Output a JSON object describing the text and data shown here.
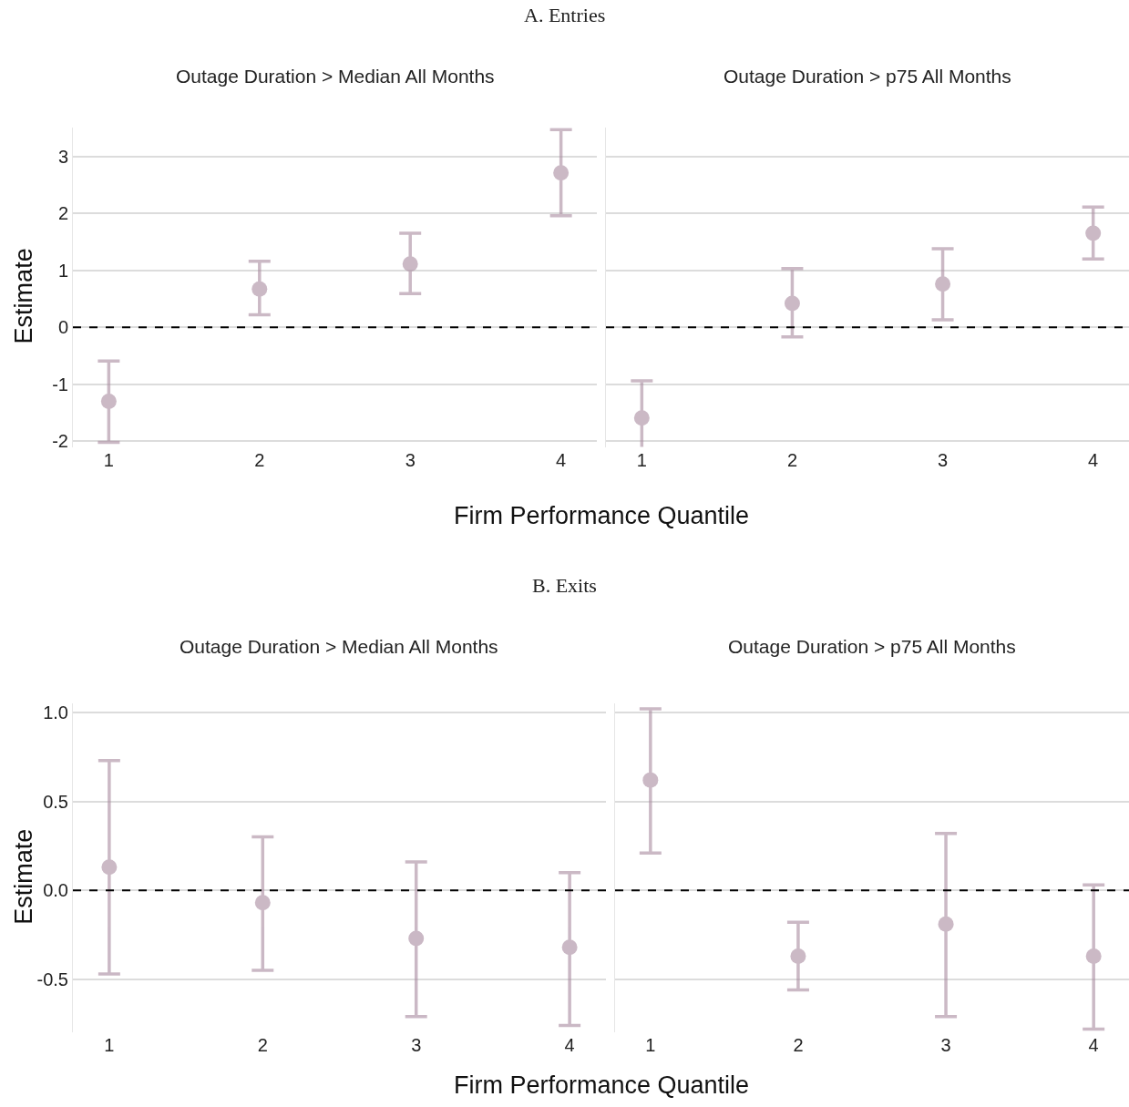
{
  "chart_data": [
    {
      "type": "scatter",
      "title": "A. Entries",
      "subtitle": "Outage Duration > Median All Months",
      "xlabel": "Firm Performance Quantile",
      "ylabel": "Estimate",
      "categories": [
        "1",
        "2",
        "3",
        "4"
      ],
      "series": [
        {
          "color": "#a88a9f",
          "values": [
            -1.3,
            0.67,
            1.11,
            2.71
          ],
          "errors": [
            [
              -2.02,
              -0.59
            ],
            [
              0.22,
              1.16
            ],
            [
              0.59,
              1.65
            ],
            [
              1.96,
              3.47
            ]
          ]
        }
      ],
      "ylim": [
        -2.1,
        3.5
      ],
      "yticks": [
        -2,
        -1,
        0,
        1,
        2,
        3
      ],
      "grid": "y",
      "marker": "circle",
      "ref_lines": [
        {
          "axis": "y",
          "value": 0,
          "color": "#000000",
          "line_style": "dashed"
        }
      ]
    },
    {
      "type": "scatter",
      "subtitle": "Outage Duration > p75 All Months",
      "categories": [
        "1",
        "2",
        "3",
        "4"
      ],
      "series": [
        {
          "color": "#a88a9f",
          "values": [
            -1.59,
            0.42,
            0.76,
            1.65
          ],
          "errors": [
            [
              -2.23,
              -0.94
            ],
            [
              -0.17,
              1.03
            ],
            [
              0.13,
              1.38
            ],
            [
              1.2,
              2.11
            ]
          ]
        }
      ],
      "ylim": [
        -2.1,
        3.5
      ],
      "yticks": [
        -2,
        -1,
        0,
        1,
        2,
        3
      ],
      "grid": "y",
      "marker": "circle",
      "tick_labels": "x",
      "ref_lines": [
        {
          "axis": "y",
          "value": 0,
          "color": "#000000",
          "line_style": "dashed"
        }
      ]
    },
    {
      "type": "scatter",
      "title": "B. Exits",
      "subtitle": "Outage Duration > Median All Months",
      "xlabel": "Firm Performance Quantile",
      "ylabel": "Estimate",
      "categories": [
        "1",
        "2",
        "3",
        "4"
      ],
      "series": [
        {
          "color": "#a88a9f",
          "values": [
            0.13,
            -0.07,
            -0.27,
            -0.32
          ],
          "errors": [
            [
              -0.47,
              0.73
            ],
            [
              -0.45,
              0.3
            ],
            [
              -0.71,
              0.16
            ],
            [
              -0.76,
              0.1
            ]
          ]
        }
      ],
      "ylim": [
        -0.8,
        1.05
      ],
      "yticks": [
        {
          "value": -0.5,
          "label": "-0.5"
        },
        {
          "value": 0,
          "label": "0.0"
        },
        {
          "value": 0.5,
          "label": "0.5"
        },
        {
          "value": 1,
          "label": "1.0"
        }
      ],
      "grid": "y",
      "marker": "circle",
      "ref_lines": [
        {
          "axis": "y",
          "value": 0,
          "color": "#000000",
          "line_style": "dashed"
        }
      ]
    },
    {
      "type": "scatter",
      "subtitle": "Outage Duration > p75 All Months",
      "categories": [
        "1",
        "2",
        "3",
        "4"
      ],
      "series": [
        {
          "color": "#a88a9f",
          "values": [
            0.62,
            -0.37,
            -0.19,
            -0.37
          ],
          "errors": [
            [
              0.21,
              1.02
            ],
            [
              -0.56,
              -0.18
            ],
            [
              -0.71,
              0.32
            ],
            [
              -0.78,
              0.03
            ]
          ]
        }
      ],
      "ylim": [
        -0.8,
        1.05
      ],
      "yticks": [
        -0.5,
        0,
        0.5,
        1
      ],
      "grid": "y",
      "marker": "circle",
      "tick_labels": "x",
      "ref_lines": [
        {
          "axis": "y",
          "value": 0,
          "color": "#000000",
          "line_style": "dashed"
        }
      ]
    }
  ]
}
